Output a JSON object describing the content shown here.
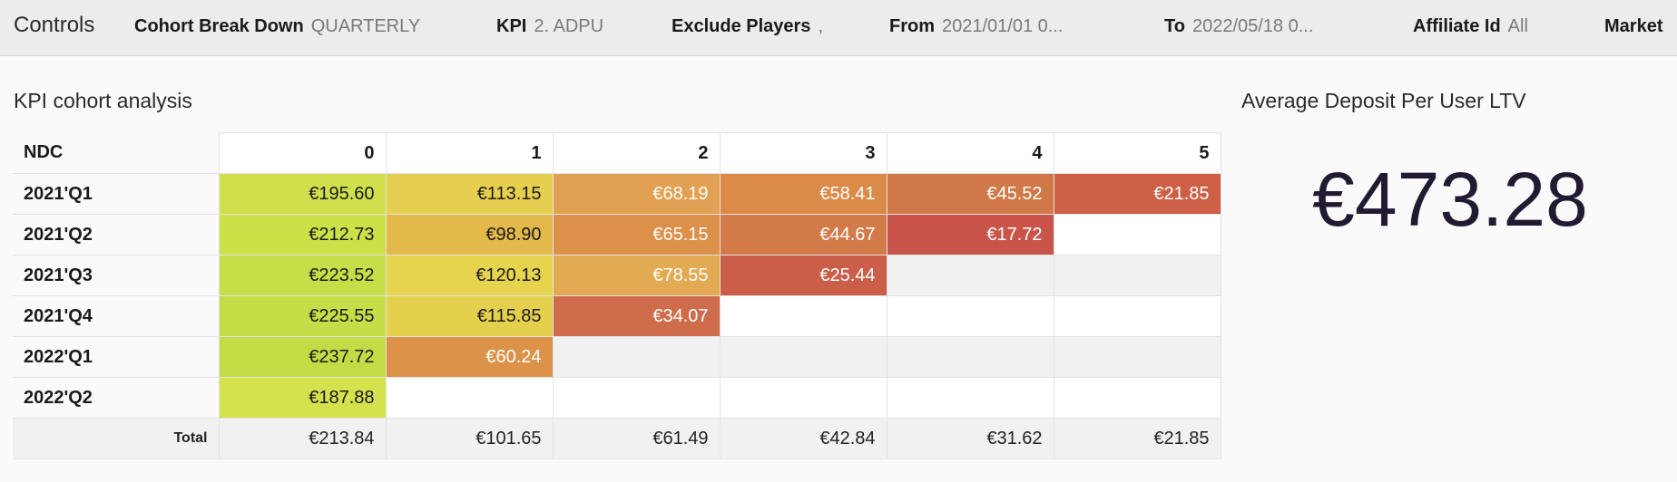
{
  "controls": {
    "title": "Controls",
    "items": [
      {
        "label": "Cohort Break Down",
        "value": "QUARTERLY"
      },
      {
        "label": "KPI",
        "value": "2. ADPU"
      },
      {
        "label": "Exclude Players",
        "value": ","
      },
      {
        "label": "From",
        "value": "2021/01/01 0..."
      },
      {
        "label": "To",
        "value": "2022/05/18 0..."
      },
      {
        "label": "Affiliate Id",
        "value": "All"
      },
      {
        "label": "Market",
        "value": ""
      }
    ]
  },
  "cohort": {
    "title": "KPI cohort analysis",
    "row_header": "NDC",
    "columns": [
      "0",
      "1",
      "2",
      "3",
      "4",
      "5"
    ],
    "rows": [
      {
        "label": "2021'Q1",
        "cells": [
          "€195.60",
          "€113.15",
          "€68.19",
          "€58.41",
          "€45.52",
          "€21.85"
        ]
      },
      {
        "label": "2021'Q2",
        "cells": [
          "€212.73",
          "€98.90",
          "€65.15",
          "€44.67",
          "€17.72",
          ""
        ]
      },
      {
        "label": "2021'Q3",
        "cells": [
          "€223.52",
          "€120.13",
          "€78.55",
          "€25.44",
          "",
          ""
        ]
      },
      {
        "label": "2021'Q4",
        "cells": [
          "€225.55",
          "€115.85",
          "€34.07",
          "",
          "",
          ""
        ]
      },
      {
        "label": "2022'Q1",
        "cells": [
          "€237.72",
          "€60.24",
          "",
          "",
          "",
          ""
        ]
      },
      {
        "label": "2022'Q2",
        "cells": [
          "€187.88",
          "",
          "",
          "",
          "",
          ""
        ]
      }
    ],
    "total": {
      "label": "Total",
      "cells": [
        "€213.84",
        "€101.65",
        "€61.49",
        "€42.84",
        "€31.62",
        "€21.85"
      ]
    },
    "cell_colors": [
      [
        "#cfe04c",
        "#e6cf4e",
        "#e2a052",
        "#db8a47",
        "#d07848",
        "#cc5f46"
      ],
      [
        "#cce048",
        "#e4b94c",
        "#dc9049",
        "#d27a48",
        "#c9544a",
        ""
      ],
      [
        "#c8de48",
        "#e6d44e",
        "#e2aa52",
        "#cb5e48",
        "",
        ""
      ],
      [
        "#c6dd48",
        "#e5d04e",
        "#cf6c4b",
        "",
        "",
        ""
      ],
      [
        "#c3dc46",
        "#dd924a",
        "",
        "",
        "",
        ""
      ],
      [
        "#d4e24e",
        "",
        "",
        "",
        "",
        ""
      ]
    ],
    "light_text_cells": [
      [
        false,
        false,
        true,
        true,
        true,
        true
      ],
      [
        false,
        false,
        true,
        true,
        true,
        false
      ],
      [
        false,
        false,
        true,
        true,
        false,
        false
      ],
      [
        false,
        false,
        true,
        false,
        false,
        false
      ],
      [
        false,
        true,
        false,
        false,
        false,
        false
      ],
      [
        false,
        false,
        false,
        false,
        false,
        false
      ]
    ]
  },
  "kpi": {
    "title": "Average Deposit Per User LTV",
    "value": "€473.28"
  }
}
